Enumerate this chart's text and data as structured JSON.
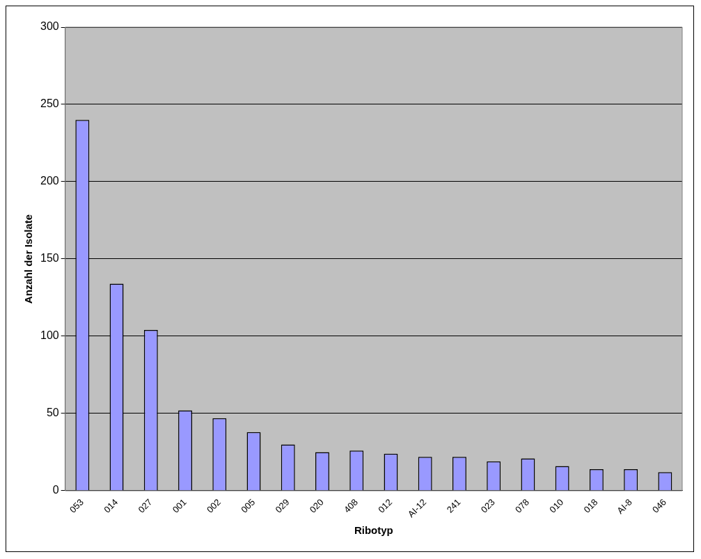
{
  "chart_data": {
    "type": "bar",
    "xlabel": "Ribotyp",
    "ylabel": "Anzahl der Isolate",
    "categories": [
      "053",
      "014",
      "027",
      "001",
      "002",
      "005",
      "029",
      "020",
      "408",
      "012",
      "AI-12",
      "241",
      "023",
      "078",
      "010",
      "018",
      "AI-8",
      "046"
    ],
    "values": [
      240,
      134,
      104,
      52,
      47,
      38,
      30,
      25,
      26,
      24,
      22,
      22,
      19,
      21,
      16,
      14,
      14,
      12
    ],
    "color": "#9999ff",
    "ylim": [
      0,
      300
    ],
    "yticks": [
      0,
      50,
      100,
      150,
      200,
      250,
      300
    ],
    "grid": "y",
    "legend": false
  }
}
